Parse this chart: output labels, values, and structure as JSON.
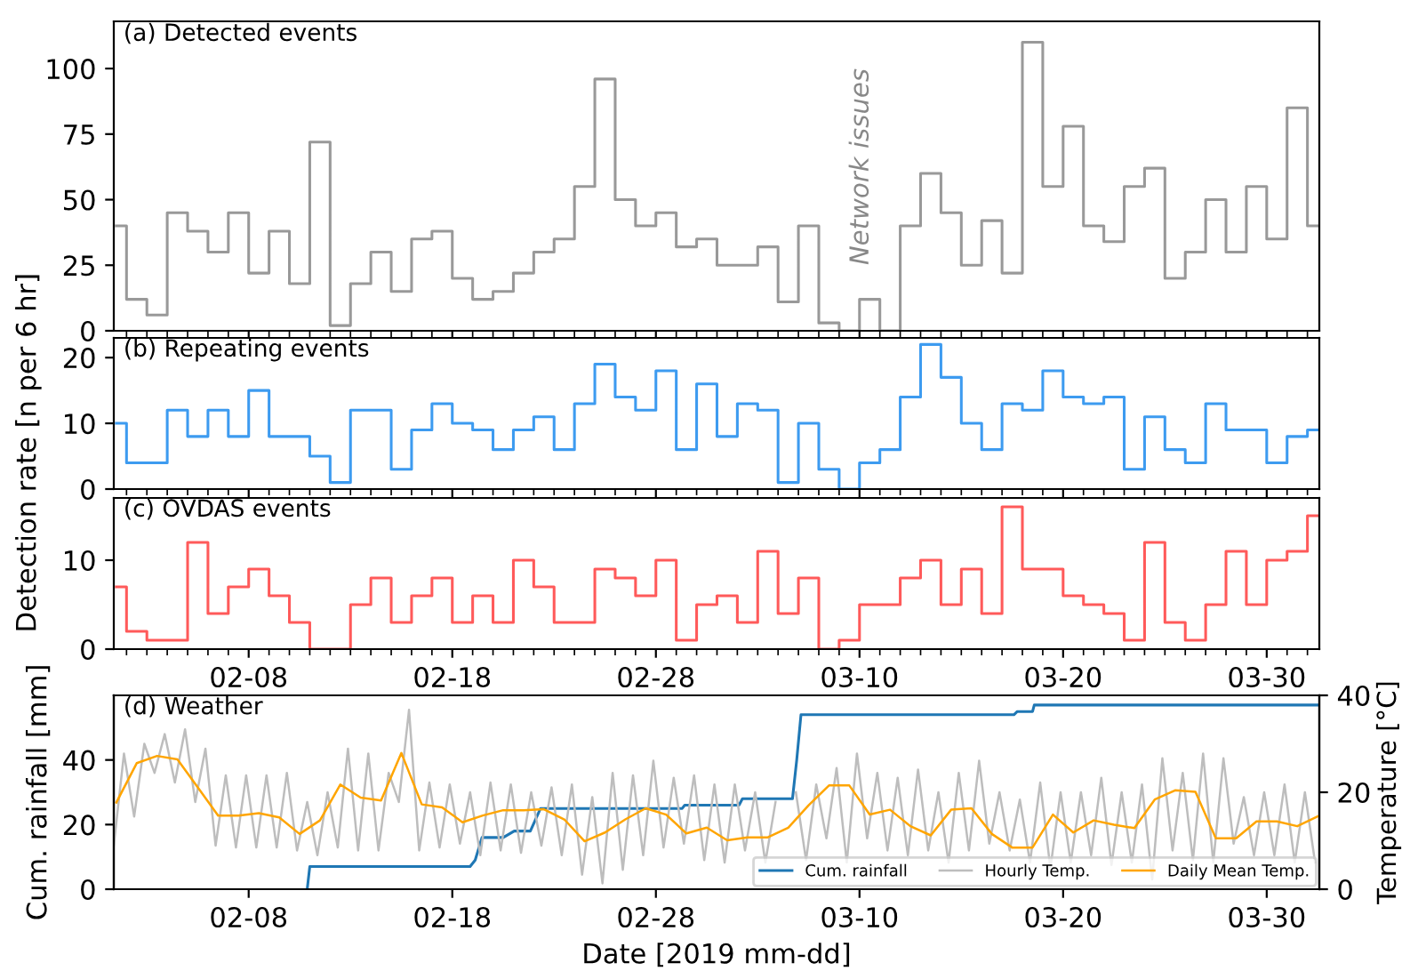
{
  "chart_data": [
    {
      "type": "step",
      "title": "(a) Detected events",
      "tick_labels": "y",
      "xlim": [
        "2019-02-01T09:00",
        "2019-04-01T14:00"
      ],
      "xticks": [
        {
          "value": "2019-02-08",
          "label": null
        },
        {
          "value": "2019-02-18",
          "label": null
        },
        {
          "value": "2019-02-28",
          "label": null
        },
        {
          "value": "2019-03-10",
          "label": null
        },
        {
          "value": "2019-03-20",
          "label": null
        },
        {
          "value": "2019-03-30",
          "label": null
        }
      ],
      "ylim": [
        0,
        118
      ],
      "yticks": [
        0,
        25,
        50,
        75,
        100
      ],
      "annotations": [
        "Network issues"
      ],
      "x": [
        "2019-02-01T12:00",
        "2019-02-02T12:00",
        "2019-02-03T12:00",
        "2019-02-04T12:00",
        "2019-02-05T12:00",
        "2019-02-06T12:00",
        "2019-02-07T12:00",
        "2019-02-08T12:00",
        "2019-02-09T12:00",
        "2019-02-10T12:00",
        "2019-02-11T12:00",
        "2019-02-12T12:00",
        "2019-02-13T12:00",
        "2019-02-14T12:00",
        "2019-02-15T12:00",
        "2019-02-16T12:00",
        "2019-02-17T12:00",
        "2019-02-18T12:00",
        "2019-02-19T12:00",
        "2019-02-20T12:00",
        "2019-02-21T12:00",
        "2019-02-22T12:00",
        "2019-02-23T12:00",
        "2019-02-24T12:00",
        "2019-02-25T12:00",
        "2019-02-26T12:00",
        "2019-02-27T12:00",
        "2019-02-28T12:00",
        "2019-03-01T12:00",
        "2019-03-02T12:00",
        "2019-03-03T12:00",
        "2019-03-04T12:00",
        "2019-03-05T12:00",
        "2019-03-06T12:00",
        "2019-03-07T12:00",
        "2019-03-08T12:00",
        "2019-03-09T12:00",
        "2019-03-10T12:00",
        "2019-03-11T12:00",
        "2019-03-12T12:00",
        "2019-03-13T12:00",
        "2019-03-14T12:00",
        "2019-03-15T12:00",
        "2019-03-16T12:00",
        "2019-03-17T12:00",
        "2019-03-18T12:00",
        "2019-03-19T12:00",
        "2019-03-20T12:00",
        "2019-03-21T12:00",
        "2019-03-22T12:00",
        "2019-03-23T12:00",
        "2019-03-24T12:00",
        "2019-03-25T12:00",
        "2019-03-26T12:00",
        "2019-03-27T12:00",
        "2019-03-28T12:00",
        "2019-03-29T12:00",
        "2019-03-30T12:00",
        "2019-03-31T12:00",
        "2019-04-01T12:00"
      ],
      "series": [
        {
          "color": "#999999",
          "values": [
            40,
            12,
            6,
            45,
            38,
            30,
            45,
            22,
            38,
            18,
            72,
            2,
            18,
            30,
            15,
            35,
            38,
            20,
            12,
            15,
            22,
            30,
            35,
            55,
            96,
            50,
            40,
            45,
            32,
            35,
            25,
            25,
            32,
            11,
            40,
            3,
            0,
            12,
            0,
            40,
            60,
            45,
            25,
            42,
            22,
            110,
            55,
            78,
            40,
            34,
            55,
            62,
            20,
            30,
            50,
            30,
            55,
            35,
            85,
            40
          ]
        }
      ]
    },
    {
      "type": "step",
      "title": "(b) Repeating events",
      "ylabel": "Detection rate [n per 6 hr]",
      "tick_labels": "y",
      "xlim": [
        "2019-02-01T09:00",
        "2019-04-01T14:00"
      ],
      "xticks": [
        {
          "value": "2019-02-08",
          "label": null
        },
        {
          "value": "2019-02-18",
          "label": null
        },
        {
          "value": "2019-02-28",
          "label": null
        },
        {
          "value": "2019-03-10",
          "label": null
        },
        {
          "value": "2019-03-20",
          "label": null
        },
        {
          "value": "2019-03-30",
          "label": null
        }
      ],
      "ylim": [
        0,
        23
      ],
      "yticks": [
        0,
        10,
        20
      ],
      "x": [
        "2019-02-01T12:00",
        "2019-02-02T12:00",
        "2019-02-03T12:00",
        "2019-02-04T12:00",
        "2019-02-05T12:00",
        "2019-02-06T12:00",
        "2019-02-07T12:00",
        "2019-02-08T12:00",
        "2019-02-09T12:00",
        "2019-02-10T12:00",
        "2019-02-11T12:00",
        "2019-02-12T12:00",
        "2019-02-13T12:00",
        "2019-02-14T12:00",
        "2019-02-15T12:00",
        "2019-02-16T12:00",
        "2019-02-17T12:00",
        "2019-02-18T12:00",
        "2019-02-19T12:00",
        "2019-02-20T12:00",
        "2019-02-21T12:00",
        "2019-02-22T12:00",
        "2019-02-23T12:00",
        "2019-02-24T12:00",
        "2019-02-25T12:00",
        "2019-02-26T12:00",
        "2019-02-27T12:00",
        "2019-02-28T12:00",
        "2019-03-01T12:00",
        "2019-03-02T12:00",
        "2019-03-03T12:00",
        "2019-03-04T12:00",
        "2019-03-05T12:00",
        "2019-03-06T12:00",
        "2019-03-07T12:00",
        "2019-03-08T12:00",
        "2019-03-09T12:00",
        "2019-03-10T12:00",
        "2019-03-11T12:00",
        "2019-03-12T12:00",
        "2019-03-13T12:00",
        "2019-03-14T12:00",
        "2019-03-15T12:00",
        "2019-03-16T12:00",
        "2019-03-17T12:00",
        "2019-03-18T12:00",
        "2019-03-19T12:00",
        "2019-03-20T12:00",
        "2019-03-21T12:00",
        "2019-03-22T12:00",
        "2019-03-23T12:00",
        "2019-03-24T12:00",
        "2019-03-25T12:00",
        "2019-03-26T12:00",
        "2019-03-27T12:00",
        "2019-03-28T12:00",
        "2019-03-29T12:00",
        "2019-03-30T12:00",
        "2019-03-31T12:00",
        "2019-04-01T12:00"
      ],
      "series": [
        {
          "color": "#3d9bf0",
          "values": [
            10,
            4,
            4,
            12,
            8,
            12,
            8,
            15,
            8,
            8,
            5,
            1,
            12,
            12,
            3,
            9,
            13,
            10,
            9,
            6,
            9,
            11,
            6,
            13,
            19,
            14,
            12,
            18,
            6,
            16,
            8,
            13,
            12,
            1,
            10,
            3,
            0,
            4,
            6,
            14,
            22,
            17,
            10,
            6,
            13,
            12,
            18,
            14,
            13,
            14,
            3,
            11,
            6,
            4,
            13,
            9,
            9,
            4,
            8,
            9
          ]
        }
      ]
    },
    {
      "type": "step",
      "title": "(c) OVDAS events",
      "xlim": [
        "2019-02-01T09:00",
        "2019-04-01T14:00"
      ],
      "xticks": [
        {
          "value": "2019-02-08",
          "label": "02-08"
        },
        {
          "value": "2019-02-18",
          "label": "02-18"
        },
        {
          "value": "2019-02-28",
          "label": "02-28"
        },
        {
          "value": "2019-03-10",
          "label": "03-10"
        },
        {
          "value": "2019-03-20",
          "label": "03-20"
        },
        {
          "value": "2019-03-30",
          "label": "03-30"
        }
      ],
      "ylim": [
        0,
        17
      ],
      "yticks": [
        0,
        10
      ],
      "x": [
        "2019-02-01T12:00",
        "2019-02-02T12:00",
        "2019-02-03T12:00",
        "2019-02-04T12:00",
        "2019-02-05T12:00",
        "2019-02-06T12:00",
        "2019-02-07T12:00",
        "2019-02-08T12:00",
        "2019-02-09T12:00",
        "2019-02-10T12:00",
        "2019-02-11T12:00",
        "2019-02-12T12:00",
        "2019-02-13T12:00",
        "2019-02-14T12:00",
        "2019-02-15T12:00",
        "2019-02-16T12:00",
        "2019-02-17T12:00",
        "2019-02-18T12:00",
        "2019-02-19T12:00",
        "2019-02-20T12:00",
        "2019-02-21T12:00",
        "2019-02-22T12:00",
        "2019-02-23T12:00",
        "2019-02-24T12:00",
        "2019-02-25T12:00",
        "2019-02-26T12:00",
        "2019-02-27T12:00",
        "2019-02-28T12:00",
        "2019-03-01T12:00",
        "2019-03-02T12:00",
        "2019-03-03T12:00",
        "2019-03-04T12:00",
        "2019-03-05T12:00",
        "2019-03-06T12:00",
        "2019-03-07T12:00",
        "2019-03-08T12:00",
        "2019-03-09T12:00",
        "2019-03-10T12:00",
        "2019-03-11T12:00",
        "2019-03-12T12:00",
        "2019-03-13T12:00",
        "2019-03-14T12:00",
        "2019-03-15T12:00",
        "2019-03-16T12:00",
        "2019-03-17T12:00",
        "2019-03-18T12:00",
        "2019-03-19T12:00",
        "2019-03-20T12:00",
        "2019-03-21T12:00",
        "2019-03-22T12:00",
        "2019-03-23T12:00",
        "2019-03-24T12:00",
        "2019-03-25T12:00",
        "2019-03-26T12:00",
        "2019-03-27T12:00",
        "2019-03-28T12:00",
        "2019-03-29T12:00",
        "2019-03-30T12:00",
        "2019-03-31T12:00",
        "2019-04-01T12:00"
      ],
      "series": [
        {
          "color": "#ff5a5a",
          "values": [
            7,
            2,
            1,
            1,
            12,
            4,
            7,
            9,
            6,
            3,
            0,
            0,
            5,
            8,
            3,
            6,
            8,
            3,
            6,
            3,
            10,
            7,
            3,
            3,
            9,
            8,
            6,
            10,
            1,
            5,
            6,
            3,
            11,
            4,
            8,
            0,
            1,
            5,
            5,
            8,
            10,
            5,
            9,
            4,
            16,
            9,
            9,
            6,
            5,
            4,
            1,
            12,
            3,
            1,
            5,
            11,
            5,
            10,
            11,
            15
          ]
        }
      ]
    },
    {
      "type": "line",
      "title": "(d) Weather",
      "xlabel": "Date [2019 mm-dd]",
      "ylabel": "Cum. rainfall [mm]",
      "y2label": "Temperature [°C]",
      "legend": "bottom right",
      "xlim": [
        "2019-02-01T09:00",
        "2019-04-01T14:00"
      ],
      "xticks": [
        {
          "value": "2019-02-08",
          "label": "02-08"
        },
        {
          "value": "2019-02-18",
          "label": "02-18"
        },
        {
          "value": "2019-02-28",
          "label": "02-28"
        },
        {
          "value": "2019-03-10",
          "label": "03-10"
        },
        {
          "value": "2019-03-20",
          "label": "03-20"
        },
        {
          "value": "2019-03-30",
          "label": "03-30"
        }
      ],
      "ylim": [
        0,
        60
      ],
      "yticks": [
        0,
        20,
        40
      ],
      "y2lim": [
        0,
        40
      ],
      "y2ticks": [
        0,
        20,
        40
      ],
      "series": [
        {
          "name": "Cum. rainfall",
          "color": "#1f77b4",
          "x": [
            "2019-02-10T21:00",
            "2019-02-11T00:00",
            "2019-02-18T21:00",
            "2019-02-19T03:00",
            "2019-02-19T11:00",
            "2019-02-20T12:00",
            "2019-02-21T01:00",
            "2019-02-21T20:00",
            "2019-02-22T08:00",
            "2019-03-01T07:00",
            "2019-03-01T10:00",
            "2019-03-04T02:00",
            "2019-03-04T06:00",
            "2019-03-06T17:00",
            "2019-03-06T22:00",
            "2019-03-07T03:00",
            "2019-03-17T14:00",
            "2019-03-17T18:00",
            "2019-03-18T12:00",
            "2019-03-18T14:00",
            "2019-04-01T12:00"
          ],
          "values": [
            0,
            7,
            7,
            9,
            16,
            16,
            18,
            18,
            25,
            25,
            26,
            26,
            28,
            28,
            40,
            54,
            54,
            55,
            55,
            57,
            57
          ]
        },
        {
          "name": "Hourly Temp.",
          "color": "#bdbdbd",
          "axis": "y2",
          "x": [
            "2019-02-01T09:00",
            "2019-02-01T21:00",
            "2019-02-02T09:00",
            "2019-02-02T21:00",
            "2019-02-03T09:00",
            "2019-02-03T21:00",
            "2019-02-04T09:00",
            "2019-02-04T21:00",
            "2019-02-05T09:00",
            "2019-02-05T21:00",
            "2019-02-06T09:00",
            "2019-02-06T21:00",
            "2019-02-07T09:00",
            "2019-02-07T21:00",
            "2019-02-08T09:00",
            "2019-02-08T21:00",
            "2019-02-09T09:00",
            "2019-02-09T21:00",
            "2019-02-10T09:00",
            "2019-02-10T21:00",
            "2019-02-11T09:00",
            "2019-02-11T21:00",
            "2019-02-12T09:00",
            "2019-02-12T21:00",
            "2019-02-13T09:00",
            "2019-02-13T21:00",
            "2019-02-14T09:00",
            "2019-02-14T21:00",
            "2019-02-15T09:00",
            "2019-02-15T21:00",
            "2019-02-16T09:00",
            "2019-02-16T21:00",
            "2019-02-17T09:00",
            "2019-02-17T21:00",
            "2019-02-18T09:00",
            "2019-02-18T21:00",
            "2019-02-19T09:00",
            "2019-02-19T21:00",
            "2019-02-20T09:00",
            "2019-02-20T21:00",
            "2019-02-21T09:00",
            "2019-02-21T21:00",
            "2019-02-22T09:00",
            "2019-02-22T21:00",
            "2019-02-23T09:00",
            "2019-02-23T21:00",
            "2019-02-24T09:00",
            "2019-02-24T21:00",
            "2019-02-25T09:00",
            "2019-02-25T21:00",
            "2019-02-26T09:00",
            "2019-02-26T21:00",
            "2019-02-27T09:00",
            "2019-02-27T21:00",
            "2019-02-28T09:00",
            "2019-02-28T21:00",
            "2019-03-01T09:00",
            "2019-03-01T21:00",
            "2019-03-02T09:00",
            "2019-03-02T21:00",
            "2019-03-03T09:00",
            "2019-03-03T21:00",
            "2019-03-04T09:00",
            "2019-03-04T21:00",
            "2019-03-05T09:00",
            "2019-03-05T21:00",
            "2019-03-06T09:00",
            "2019-03-06T21:00",
            "2019-03-07T09:00",
            "2019-03-07T21:00",
            "2019-03-08T09:00",
            "2019-03-08T21:00",
            "2019-03-09T09:00",
            "2019-03-09T21:00",
            "2019-03-10T09:00",
            "2019-03-10T21:00",
            "2019-03-11T09:00",
            "2019-03-11T21:00",
            "2019-03-12T09:00",
            "2019-03-12T21:00",
            "2019-03-13T09:00",
            "2019-03-13T21:00",
            "2019-03-14T09:00",
            "2019-03-14T21:00",
            "2019-03-15T09:00",
            "2019-03-15T21:00",
            "2019-03-16T09:00",
            "2019-03-16T21:00",
            "2019-03-17T09:00",
            "2019-03-17T21:00",
            "2019-03-18T09:00",
            "2019-03-18T21:00",
            "2019-03-19T09:00",
            "2019-03-19T21:00",
            "2019-03-20T09:00",
            "2019-03-20T21:00",
            "2019-03-21T09:00",
            "2019-03-21T21:00",
            "2019-03-22T09:00",
            "2019-03-22T21:00",
            "2019-03-23T09:00",
            "2019-03-23T21:00",
            "2019-03-24T09:00",
            "2019-03-24T21:00",
            "2019-03-25T09:00",
            "2019-03-25T21:00",
            "2019-03-26T09:00",
            "2019-03-26T21:00",
            "2019-03-27T09:00",
            "2019-03-27T21:00",
            "2019-03-28T09:00",
            "2019-03-28T21:00",
            "2019-03-29T09:00",
            "2019-03-29T21:00",
            "2019-03-30T09:00",
            "2019-03-30T21:00",
            "2019-03-31T09:00",
            "2019-03-31T21:00",
            "2019-04-01T09:00"
          ],
          "values": [
            9,
            28,
            15,
            30,
            24,
            32,
            22,
            33,
            18,
            29,
            9,
            23.5,
            8.6,
            23.5,
            8.6,
            23.5,
            8.6,
            24,
            8,
            18,
            7,
            20,
            8.6,
            29,
            8,
            28,
            8,
            24,
            18,
            37,
            8,
            22,
            8.6,
            21.6,
            9.4,
            20,
            7,
            22,
            8,
            21.6,
            7.5,
            20,
            9,
            21,
            7,
            21.6,
            3,
            19,
            1.2,
            24,
            4,
            23.5,
            7,
            26.5,
            8.6,
            23,
            9.4,
            23.5,
            6,
            21.6,
            5.5,
            21.6,
            8,
            20,
            5.5,
            18,
            null,
            20,
            6,
            21.6,
            10.5,
            25,
            5.5,
            28,
            10.5,
            24,
            8,
            23,
            7,
            24.7,
            8,
            20,
            5.5,
            24,
            8,
            26.5,
            9.4,
            20,
            8,
            18.5,
            5.5,
            22,
            4.3,
            20,
            5.5,
            20,
            7,
            23,
            5,
            20,
            5.5,
            21.6,
            2,
            27,
            8,
            24,
            6,
            28,
            5.5,
            27,
            9.4,
            19,
            7,
            20,
            7,
            21.6,
            5.5,
            20,
            5.5
          ]
        },
        {
          "name": "Daily Mean Temp.",
          "color": "#ffa500",
          "axis": "y2",
          "x": [
            "2019-02-01T12:00",
            "2019-02-02T12:00",
            "2019-02-03T12:00",
            "2019-02-04T12:00",
            "2019-02-05T12:00",
            "2019-02-06T12:00",
            "2019-02-07T12:00",
            "2019-02-08T12:00",
            "2019-02-09T12:00",
            "2019-02-10T12:00",
            "2019-02-11T12:00",
            "2019-02-12T12:00",
            "2019-02-13T12:00",
            "2019-02-14T12:00",
            "2019-02-15T12:00",
            "2019-02-16T12:00",
            "2019-02-17T12:00",
            "2019-02-18T12:00",
            "2019-02-19T12:00",
            "2019-02-20T12:00",
            "2019-02-21T12:00",
            "2019-02-22T12:00",
            "2019-02-23T12:00",
            "2019-02-24T12:00",
            "2019-02-25T12:00",
            "2019-02-26T12:00",
            "2019-02-27T12:00",
            "2019-02-28T12:00",
            "2019-03-01T12:00",
            "2019-03-02T12:00",
            "2019-03-03T12:00",
            "2019-03-04T12:00",
            "2019-03-05T12:00",
            "2019-03-06T12:00",
            "2019-03-07T12:00",
            "2019-03-08T12:00",
            "2019-03-09T12:00",
            "2019-03-10T12:00",
            "2019-03-11T12:00",
            "2019-03-12T12:00",
            "2019-03-13T12:00",
            "2019-03-14T12:00",
            "2019-03-15T12:00",
            "2019-03-16T12:00",
            "2019-03-17T12:00",
            "2019-03-18T12:00",
            "2019-03-19T12:00",
            "2019-03-20T12:00",
            "2019-03-21T12:00",
            "2019-03-22T12:00",
            "2019-03-23T12:00",
            "2019-03-24T12:00",
            "2019-03-25T12:00",
            "2019-03-26T12:00",
            "2019-03-27T12:00",
            "2019-03-28T12:00",
            "2019-03-29T12:00",
            "2019-03-30T12:00",
            "2019-03-31T12:00",
            "2019-04-01T12:00"
          ],
          "values": [
            17.9,
            26,
            27.5,
            26.8,
            21,
            15.2,
            15.2,
            15.7,
            14.8,
            11.4,
            14.2,
            21.6,
            18.9,
            18.3,
            28.1,
            17.5,
            16.9,
            13.8,
            15.2,
            16.3,
            16.3,
            16.5,
            14.4,
            9.9,
            11.7,
            14.4,
            16.7,
            15.4,
            11.5,
            12.7,
            10.1,
            10.7,
            10.7,
            12.7,
            17.3,
            21.4,
            21.4,
            15.4,
            16.4,
            13,
            11.1,
            16.4,
            16.7,
            11.4,
            8.6,
            8.6,
            15.4,
            11.7,
            14.2,
            13.3,
            12.6,
            18.5,
            20.4,
            20.1,
            10.5,
            10.5,
            14,
            14,
            13,
            15
          ]
        }
      ]
    }
  ]
}
